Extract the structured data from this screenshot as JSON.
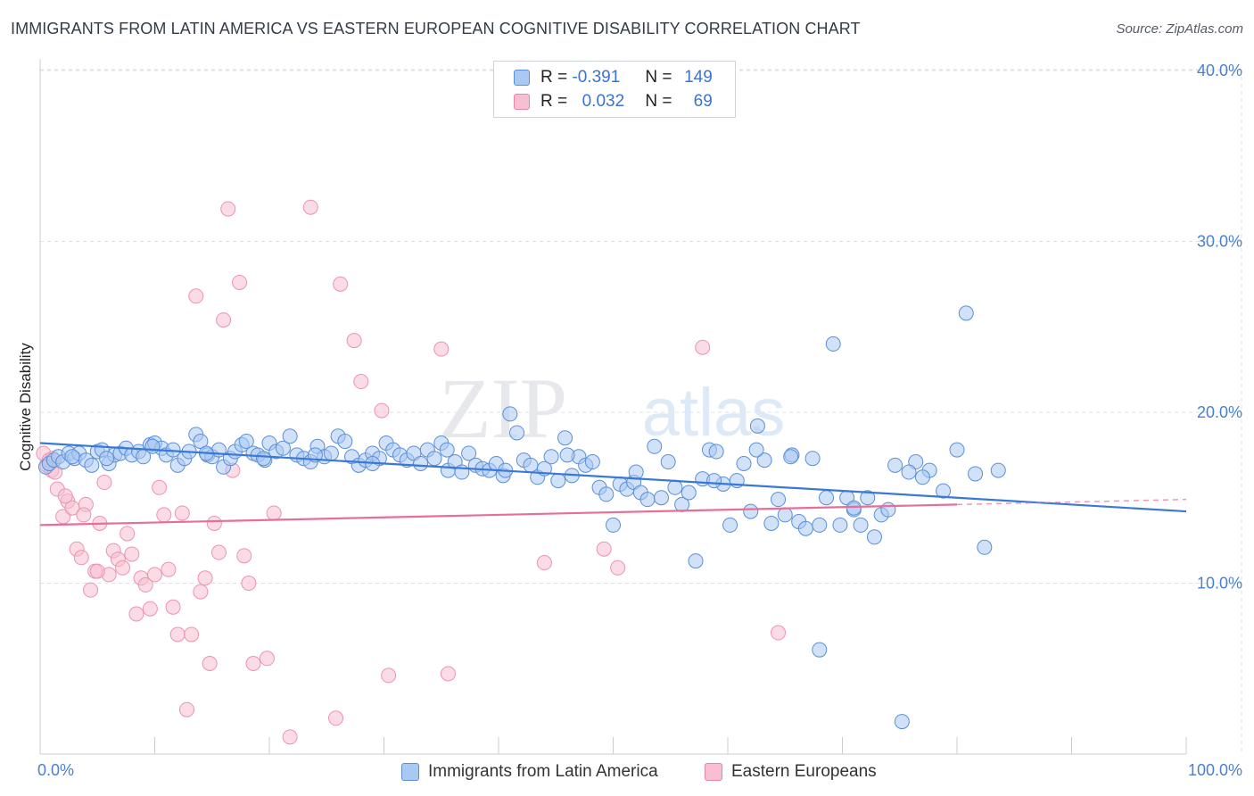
{
  "title": "IMMIGRANTS FROM LATIN AMERICA VS EASTERN EUROPEAN COGNITIVE DISABILITY CORRELATION CHART",
  "source": "Source: ZipAtlas.com",
  "watermark": {
    "zip": "ZIP",
    "atlas": "atlas"
  },
  "legend": {
    "rows": [
      {
        "r_label": "R =",
        "r_value": "-0.391",
        "n_label": "N =",
        "n_value": "149",
        "color": "#a9c8f2",
        "border": "#5b8fd8"
      },
      {
        "r_label": "R =",
        "r_value": "0.032",
        "n_label": "N =",
        "n_value": "69",
        "color": "#f7bfd0",
        "border": "#e884a6"
      }
    ]
  },
  "bottom_legend": [
    {
      "label": "Immigrants from Latin America",
      "color": "#a9c8f2",
      "border": "#5b8fd8"
    },
    {
      "label": "Eastern Europeans",
      "color": "#f7bfd0",
      "border": "#e884a6"
    }
  ],
  "colors": {
    "blue": "#3a78d6",
    "pink": "#e86d98",
    "grid": "#dde1e6",
    "axis_text": "#4a7fd4"
  },
  "chart_data": {
    "type": "scatter",
    "title": "IMMIGRANTS FROM LATIN AMERICA VS EASTERN EUROPEAN COGNITIVE DISABILITY CORRELATION CHART",
    "xlabel": "",
    "ylabel": "Cognitive Disability",
    "xlim": [
      0,
      100
    ],
    "ylim": [
      0,
      42
    ],
    "x_tick_labels": [
      "0.0%",
      "100.0%"
    ],
    "y_ticks": [
      10,
      20,
      30,
      40
    ],
    "y_tick_labels": [
      "10.0%",
      "20.0%",
      "30.0%",
      "40.0%"
    ],
    "legend_position": "top-center",
    "series": [
      {
        "name": "Immigrants from Latin America",
        "color": "#3a78d6",
        "trend": {
          "x": [
            0,
            100
          ],
          "y": [
            18.2,
            14.2
          ]
        },
        "points": [
          [
            0.5,
            16.8
          ],
          [
            0.8,
            17.0
          ],
          [
            1.2,
            17.2
          ],
          [
            1.6,
            17.4
          ],
          [
            2.0,
            17.1
          ],
          [
            2.5,
            17.6
          ],
          [
            3.0,
            17.3
          ],
          [
            3.4,
            17.6
          ],
          [
            4.0,
            17.2
          ],
          [
            4.5,
            16.9
          ],
          [
            5.0,
            17.7
          ],
          [
            5.4,
            17.8
          ],
          [
            6.0,
            17.0
          ],
          [
            6.5,
            17.5
          ],
          [
            7.0,
            17.6
          ],
          [
            7.5,
            17.9
          ],
          [
            8.0,
            17.5
          ],
          [
            8.6,
            17.7
          ],
          [
            9.0,
            17.4
          ],
          [
            9.6,
            18.1
          ],
          [
            10.0,
            18.2
          ],
          [
            10.6,
            17.9
          ],
          [
            11.0,
            17.5
          ],
          [
            11.6,
            17.8
          ],
          [
            12.0,
            16.9
          ],
          [
            12.6,
            17.3
          ],
          [
            13.0,
            17.7
          ],
          [
            13.6,
            18.7
          ],
          [
            14.0,
            18.3
          ],
          [
            14.6,
            17.5
          ],
          [
            15.0,
            17.4
          ],
          [
            15.6,
            17.8
          ],
          [
            16.0,
            16.8
          ],
          [
            16.6,
            17.3
          ],
          [
            17.0,
            17.7
          ],
          [
            17.6,
            18.1
          ],
          [
            18.0,
            18.3
          ],
          [
            18.6,
            17.6
          ],
          [
            19.0,
            17.5
          ],
          [
            19.6,
            17.2
          ],
          [
            20.0,
            18.2
          ],
          [
            20.6,
            17.7
          ],
          [
            21.2,
            17.9
          ],
          [
            21.8,
            18.6
          ],
          [
            22.4,
            17.5
          ],
          [
            23.0,
            17.3
          ],
          [
            23.6,
            17.1
          ],
          [
            24.2,
            18.0
          ],
          [
            24.8,
            17.4
          ],
          [
            25.4,
            17.6
          ],
          [
            26.0,
            18.6
          ],
          [
            26.6,
            18.3
          ],
          [
            27.2,
            17.4
          ],
          [
            27.8,
            16.9
          ],
          [
            28.4,
            17.2
          ],
          [
            29.0,
            17.6
          ],
          [
            29.6,
            17.3
          ],
          [
            30.2,
            18.2
          ],
          [
            30.8,
            17.8
          ],
          [
            31.4,
            17.5
          ],
          [
            32.0,
            17.2
          ],
          [
            32.6,
            17.6
          ],
          [
            33.2,
            17.0
          ],
          [
            33.8,
            17.8
          ],
          [
            34.4,
            17.3
          ],
          [
            35.0,
            18.2
          ],
          [
            35.6,
            16.6
          ],
          [
            36.2,
            17.1
          ],
          [
            36.8,
            16.5
          ],
          [
            37.4,
            17.6
          ],
          [
            38.0,
            16.9
          ],
          [
            38.6,
            16.7
          ],
          [
            39.2,
            16.6
          ],
          [
            39.8,
            17.0
          ],
          [
            40.4,
            16.3
          ],
          [
            41.0,
            19.9
          ],
          [
            41.6,
            18.8
          ],
          [
            42.2,
            17.2
          ],
          [
            42.8,
            16.9
          ],
          [
            43.4,
            16.2
          ],
          [
            44.0,
            16.7
          ],
          [
            44.6,
            17.4
          ],
          [
            45.2,
            16.0
          ],
          [
            45.8,
            18.5
          ],
          [
            46.4,
            16.3
          ],
          [
            47.0,
            17.4
          ],
          [
            47.6,
            16.9
          ],
          [
            48.2,
            17.1
          ],
          [
            48.8,
            15.6
          ],
          [
            49.4,
            15.2
          ],
          [
            50.0,
            13.4
          ],
          [
            50.6,
            15.8
          ],
          [
            51.2,
            15.5
          ],
          [
            51.8,
            15.9
          ],
          [
            52.4,
            15.3
          ],
          [
            53.0,
            14.9
          ],
          [
            53.6,
            18.0
          ],
          [
            54.2,
            15.0
          ],
          [
            54.8,
            17.1
          ],
          [
            55.4,
            15.6
          ],
          [
            56.0,
            14.6
          ],
          [
            56.6,
            15.3
          ],
          [
            57.2,
            11.3
          ],
          [
            57.8,
            16.1
          ],
          [
            58.4,
            17.8
          ],
          [
            59.0,
            17.7
          ],
          [
            59.6,
            15.8
          ],
          [
            60.2,
            13.4
          ],
          [
            60.8,
            16.0
          ],
          [
            61.4,
            17.0
          ],
          [
            62.0,
            14.2
          ],
          [
            62.6,
            19.2
          ],
          [
            63.2,
            17.2
          ],
          [
            63.8,
            13.5
          ],
          [
            64.4,
            14.9
          ],
          [
            65.0,
            14.0
          ],
          [
            65.6,
            17.5
          ],
          [
            66.2,
            13.6
          ],
          [
            66.8,
            13.2
          ],
          [
            67.4,
            17.3
          ],
          [
            68.0,
            13.4
          ],
          [
            68.6,
            15.0
          ],
          [
            69.2,
            24.0
          ],
          [
            69.8,
            13.4
          ],
          [
            70.4,
            15.0
          ],
          [
            71.0,
            14.3
          ],
          [
            71.6,
            13.4
          ],
          [
            72.2,
            15.0
          ],
          [
            72.8,
            12.7
          ],
          [
            73.4,
            14.0
          ],
          [
            74.0,
            14.3
          ],
          [
            74.6,
            16.9
          ],
          [
            75.2,
            1.9
          ],
          [
            76.4,
            17.1
          ],
          [
            77.6,
            16.6
          ],
          [
            78.8,
            15.4
          ],
          [
            80.0,
            17.8
          ],
          [
            80.8,
            25.8
          ],
          [
            81.6,
            16.4
          ],
          [
            82.4,
            12.1
          ],
          [
            83.6,
            16.6
          ],
          [
            68.0,
            6.1
          ],
          [
            65.5,
            17.4
          ],
          [
            71.0,
            14.4
          ],
          [
            58.8,
            16.0
          ],
          [
            52.0,
            16.5
          ],
          [
            46.0,
            17.5
          ],
          [
            40.6,
            16.6
          ],
          [
            35.5,
            17.8
          ],
          [
            29.0,
            17.0
          ],
          [
            24.0,
            17.5
          ],
          [
            19.5,
            17.3
          ],
          [
            14.5,
            17.6
          ],
          [
            9.8,
            18.0
          ],
          [
            5.8,
            17.3
          ],
          [
            2.8,
            17.4
          ],
          [
            77.0,
            16.2
          ],
          [
            75.8,
            16.5
          ],
          [
            62.5,
            17.8
          ]
        ]
      },
      {
        "name": "Eastern Europeans",
        "color": "#e86d98",
        "trend": {
          "x": [
            0,
            80
          ],
          "y": [
            13.4,
            14.6
          ]
        },
        "trend_dashed": {
          "x": [
            80,
            100
          ],
          "y": [
            14.6,
            14.9
          ]
        },
        "points": [
          [
            0.3,
            17.6
          ],
          [
            0.6,
            16.9
          ],
          [
            1.0,
            16.6
          ],
          [
            1.5,
            15.5
          ],
          [
            2.0,
            13.9
          ],
          [
            2.4,
            14.8
          ],
          [
            2.8,
            14.4
          ],
          [
            3.2,
            12.0
          ],
          [
            3.6,
            11.5
          ],
          [
            4.0,
            14.6
          ],
          [
            4.4,
            9.6
          ],
          [
            4.8,
            10.7
          ],
          [
            5.2,
            13.5
          ],
          [
            5.6,
            15.9
          ],
          [
            6.0,
            10.5
          ],
          [
            6.4,
            11.9
          ],
          [
            6.8,
            11.4
          ],
          [
            7.2,
            10.9
          ],
          [
            7.6,
            12.9
          ],
          [
            8.0,
            11.7
          ],
          [
            8.4,
            8.2
          ],
          [
            8.8,
            10.3
          ],
          [
            9.2,
            9.9
          ],
          [
            9.6,
            8.5
          ],
          [
            10.0,
            10.5
          ],
          [
            10.4,
            15.6
          ],
          [
            10.8,
            14.0
          ],
          [
            11.2,
            10.8
          ],
          [
            11.6,
            8.6
          ],
          [
            12.0,
            7.0
          ],
          [
            12.4,
            14.1
          ],
          [
            12.8,
            2.6
          ],
          [
            13.2,
            7.0
          ],
          [
            13.6,
            26.8
          ],
          [
            14.0,
            9.5
          ],
          [
            14.4,
            10.3
          ],
          [
            14.8,
            5.3
          ],
          [
            15.2,
            13.5
          ],
          [
            15.6,
            11.8
          ],
          [
            16.0,
            25.4
          ],
          [
            16.4,
            31.9
          ],
          [
            16.8,
            16.6
          ],
          [
            17.4,
            27.6
          ],
          [
            17.8,
            11.6
          ],
          [
            18.2,
            10.0
          ],
          [
            18.6,
            5.3
          ],
          [
            19.8,
            5.6
          ],
          [
            20.4,
            14.1
          ],
          [
            21.8,
            1.0
          ],
          [
            23.6,
            32.0
          ],
          [
            25.8,
            2.1
          ],
          [
            26.2,
            27.5
          ],
          [
            27.4,
            24.2
          ],
          [
            28.0,
            21.8
          ],
          [
            29.8,
            20.1
          ],
          [
            30.4,
            4.6
          ],
          [
            35.0,
            23.7
          ],
          [
            35.6,
            4.7
          ],
          [
            44.0,
            11.2
          ],
          [
            49.2,
            12.0
          ],
          [
            50.4,
            10.9
          ],
          [
            57.8,
            23.8
          ],
          [
            64.4,
            7.1
          ],
          [
            0.8,
            17.2
          ],
          [
            1.3,
            16.5
          ],
          [
            2.2,
            15.1
          ],
          [
            3.8,
            14.0
          ],
          [
            5.0,
            10.7
          ],
          [
            1.1,
            17.3
          ]
        ]
      }
    ]
  }
}
